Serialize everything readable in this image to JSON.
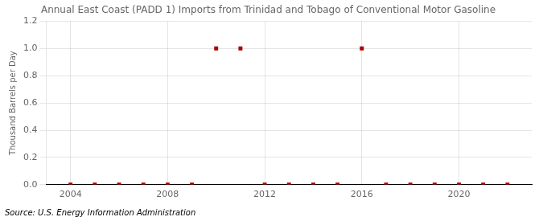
{
  "chart_data": {
    "type": "scatter",
    "title": "Annual East Coast (PADD 1) Imports from Trinidad and Tobago of Conventional Motor Gasoline",
    "ylabel": "Thousand Barrels per Day",
    "source": "Source: U.S. Energy Information Administration",
    "x": [
      2004,
      2005,
      2006,
      2007,
      2008,
      2009,
      2010,
      2011,
      2012,
      2013,
      2014,
      2015,
      2016,
      2017,
      2018,
      2019,
      2020,
      2021,
      2022
    ],
    "values": [
      0,
      0,
      0,
      0,
      0,
      0,
      1.0,
      1.0,
      0,
      0,
      0,
      0,
      1.0,
      0,
      0,
      0,
      0,
      0,
      0
    ],
    "color": "#aa0000",
    "marker": "square",
    "xlim": [
      2003,
      2023
    ],
    "xticks": [
      2004,
      2008,
      2012,
      2016,
      2020
    ],
    "ylim": [
      0.0,
      1.2
    ],
    "yticks": [
      {
        "value": 0.0,
        "label": "0.0"
      },
      {
        "value": 0.2,
        "label": "0.2"
      },
      {
        "value": 0.4,
        "label": "0.4"
      },
      {
        "value": 0.6,
        "label": "0.6"
      },
      {
        "value": 0.8,
        "label": "0.8"
      },
      {
        "value": 1.0,
        "label": "1.0"
      },
      {
        "value": 1.2,
        "label": "1.2"
      }
    ],
    "grid": true
  }
}
